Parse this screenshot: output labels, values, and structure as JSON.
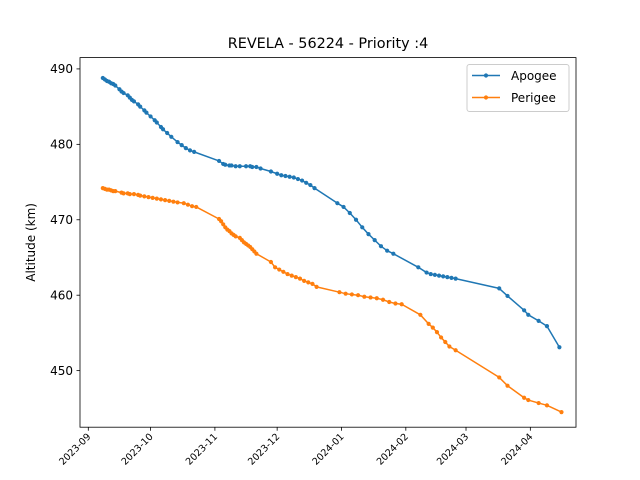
{
  "chart_data": {
    "type": "line",
    "title": "REVELA - 56224 - Priority :4",
    "xlabel": "",
    "ylabel": "Altitude (km)",
    "x_type": "date",
    "xlim": [
      "2023-08-28",
      "2024-04-23"
    ],
    "ylim": [
      442.5,
      491.5
    ],
    "x_ticks": [
      "2023-09",
      "2023-10",
      "2023-11",
      "2023-12",
      "2024-01",
      "2024-02",
      "2024-03",
      "2024-04"
    ],
    "y_ticks": [
      450,
      460,
      470,
      480,
      490
    ],
    "grid": false,
    "legend_position": "top-right",
    "series": [
      {
        "name": "Apogee",
        "color": "#1f77b4",
        "marker": "circle",
        "points": [
          [
            "2023-09-08",
            488.8
          ],
          [
            "2023-09-09",
            488.6
          ],
          [
            "2023-09-10",
            488.4
          ],
          [
            "2023-09-11",
            488.3
          ],
          [
            "2023-09-12",
            488.1
          ],
          [
            "2023-09-13",
            488.0
          ],
          [
            "2023-09-14",
            487.8
          ],
          [
            "2023-09-16",
            487.3
          ],
          [
            "2023-09-17",
            487.0
          ],
          [
            "2023-09-18",
            486.8
          ],
          [
            "2023-09-20",
            486.5
          ],
          [
            "2023-09-21",
            486.2
          ],
          [
            "2023-09-22",
            485.9
          ],
          [
            "2023-09-23",
            485.7
          ],
          [
            "2023-09-25",
            485.3
          ],
          [
            "2023-09-26",
            485.0
          ],
          [
            "2023-09-28",
            484.5
          ],
          [
            "2023-09-29",
            484.2
          ],
          [
            "2023-10-01",
            483.7
          ],
          [
            "2023-10-03",
            483.2
          ],
          [
            "2023-10-04",
            482.9
          ],
          [
            "2023-10-06",
            482.3
          ],
          [
            "2023-10-07",
            482.0
          ],
          [
            "2023-10-09",
            481.5
          ],
          [
            "2023-10-11",
            481.0
          ],
          [
            "2023-10-14",
            480.3
          ],
          [
            "2023-10-16",
            479.9
          ],
          [
            "2023-10-18",
            479.5
          ],
          [
            "2023-10-20",
            479.2
          ],
          [
            "2023-10-22",
            479.0
          ],
          [
            "2023-11-03",
            477.8
          ],
          [
            "2023-11-05",
            477.4
          ],
          [
            "2023-11-06",
            477.3
          ],
          [
            "2023-11-08",
            477.2
          ],
          [
            "2023-11-09",
            477.2
          ],
          [
            "2023-11-11",
            477.1
          ],
          [
            "2023-11-13",
            477.1
          ],
          [
            "2023-11-16",
            477.1
          ],
          [
            "2023-11-18",
            477.1
          ],
          [
            "2023-11-19",
            477.0
          ],
          [
            "2023-11-21",
            477.0
          ],
          [
            "2023-11-23",
            476.8
          ],
          [
            "2023-11-28",
            476.4
          ],
          [
            "2023-12-01",
            476.1
          ],
          [
            "2023-12-03",
            475.9
          ],
          [
            "2023-12-05",
            475.8
          ],
          [
            "2023-12-07",
            475.7
          ],
          [
            "2023-12-09",
            475.6
          ],
          [
            "2023-12-11",
            475.4
          ],
          [
            "2023-12-13",
            475.2
          ],
          [
            "2023-12-15",
            474.9
          ],
          [
            "2023-12-17",
            474.6
          ],
          [
            "2023-12-19",
            474.2
          ],
          [
            "2023-12-30",
            472.2
          ],
          [
            "2024-01-02",
            471.7
          ],
          [
            "2024-01-05",
            470.9
          ],
          [
            "2024-01-08",
            470.0
          ],
          [
            "2024-01-11",
            469.0
          ],
          [
            "2024-01-14",
            468.1
          ],
          [
            "2024-01-17",
            467.3
          ],
          [
            "2024-01-20",
            466.5
          ],
          [
            "2024-01-23",
            465.9
          ],
          [
            "2024-01-26",
            465.5
          ],
          [
            "2024-02-07",
            463.7
          ],
          [
            "2024-02-11",
            463.0
          ],
          [
            "2024-02-13",
            462.8
          ],
          [
            "2024-02-15",
            462.7
          ],
          [
            "2024-02-17",
            462.6
          ],
          [
            "2024-02-19",
            462.5
          ],
          [
            "2024-02-21",
            462.4
          ],
          [
            "2024-02-23",
            462.3
          ],
          [
            "2024-02-25",
            462.2
          ],
          [
            "2024-03-17",
            460.9
          ],
          [
            "2024-03-21",
            459.9
          ],
          [
            "2024-03-29",
            458.0
          ],
          [
            "2024-03-31",
            457.4
          ],
          [
            "2024-04-05",
            456.6
          ],
          [
            "2024-04-09",
            455.9
          ],
          [
            "2024-04-15",
            453.1
          ]
        ]
      },
      {
        "name": "Perigee",
        "color": "#ff7f0e",
        "marker": "circle",
        "points": [
          [
            "2023-09-08",
            474.2
          ],
          [
            "2023-09-09",
            474.1
          ],
          [
            "2023-09-10",
            474.0
          ],
          [
            "2023-09-11",
            474.0
          ],
          [
            "2023-09-12",
            473.9
          ],
          [
            "2023-09-13",
            473.8
          ],
          [
            "2023-09-14",
            473.8
          ],
          [
            "2023-09-17",
            473.6
          ],
          [
            "2023-09-18",
            473.5
          ],
          [
            "2023-09-20",
            473.5
          ],
          [
            "2023-09-21",
            473.4
          ],
          [
            "2023-09-23",
            473.4
          ],
          [
            "2023-09-25",
            473.3
          ],
          [
            "2023-09-26",
            473.2
          ],
          [
            "2023-09-28",
            473.1
          ],
          [
            "2023-09-30",
            473.0
          ],
          [
            "2023-10-02",
            472.9
          ],
          [
            "2023-10-04",
            472.8
          ],
          [
            "2023-10-06",
            472.7
          ],
          [
            "2023-10-08",
            472.6
          ],
          [
            "2023-10-10",
            472.5
          ],
          [
            "2023-10-12",
            472.4
          ],
          [
            "2023-10-14",
            472.3
          ],
          [
            "2023-10-17",
            472.2
          ],
          [
            "2023-10-19",
            472.0
          ],
          [
            "2023-10-21",
            471.8
          ],
          [
            "2023-10-23",
            471.7
          ],
          [
            "2023-11-03",
            470.1
          ],
          [
            "2023-11-04",
            469.8
          ],
          [
            "2023-11-05",
            469.4
          ],
          [
            "2023-11-06",
            469.0
          ],
          [
            "2023-11-07",
            468.7
          ],
          [
            "2023-11-08",
            468.5
          ],
          [
            "2023-11-09",
            468.2
          ],
          [
            "2023-11-10",
            468.0
          ],
          [
            "2023-11-11",
            467.8
          ],
          [
            "2023-11-13",
            467.6
          ],
          [
            "2023-11-14",
            467.3
          ],
          [
            "2023-11-15",
            467.0
          ],
          [
            "2023-11-16",
            466.8
          ],
          [
            "2023-11-17",
            466.6
          ],
          [
            "2023-11-18",
            466.4
          ],
          [
            "2023-11-19",
            466.1
          ],
          [
            "2023-11-20",
            465.8
          ],
          [
            "2023-11-21",
            465.5
          ],
          [
            "2023-11-28",
            464.4
          ],
          [
            "2023-11-30",
            463.7
          ],
          [
            "2023-12-02",
            463.4
          ],
          [
            "2023-12-04",
            463.1
          ],
          [
            "2023-12-06",
            462.8
          ],
          [
            "2023-12-08",
            462.6
          ],
          [
            "2023-12-10",
            462.4
          ],
          [
            "2023-12-12",
            462.2
          ],
          [
            "2023-12-14",
            461.9
          ],
          [
            "2023-12-16",
            461.7
          ],
          [
            "2023-12-18",
            461.5
          ],
          [
            "2023-12-20",
            461.1
          ],
          [
            "2023-12-31",
            460.4
          ],
          [
            "2024-01-03",
            460.2
          ],
          [
            "2024-01-06",
            460.1
          ],
          [
            "2024-01-09",
            460.0
          ],
          [
            "2024-01-12",
            459.8
          ],
          [
            "2024-01-15",
            459.7
          ],
          [
            "2024-01-18",
            459.6
          ],
          [
            "2024-01-21",
            459.4
          ],
          [
            "2024-01-24",
            459.1
          ],
          [
            "2024-01-27",
            458.9
          ],
          [
            "2024-01-30",
            458.8
          ],
          [
            "2024-02-08",
            457.4
          ],
          [
            "2024-02-12",
            456.2
          ],
          [
            "2024-02-14",
            455.7
          ],
          [
            "2024-02-16",
            455.1
          ],
          [
            "2024-02-18",
            454.4
          ],
          [
            "2024-02-20",
            453.8
          ],
          [
            "2024-02-22",
            453.2
          ],
          [
            "2024-02-25",
            452.7
          ],
          [
            "2024-03-17",
            449.1
          ],
          [
            "2024-03-21",
            448.0
          ],
          [
            "2024-03-29",
            446.4
          ],
          [
            "2024-03-31",
            446.1
          ],
          [
            "2024-04-05",
            445.7
          ],
          [
            "2024-04-09",
            445.4
          ],
          [
            "2024-04-16",
            444.5
          ]
        ]
      }
    ]
  }
}
